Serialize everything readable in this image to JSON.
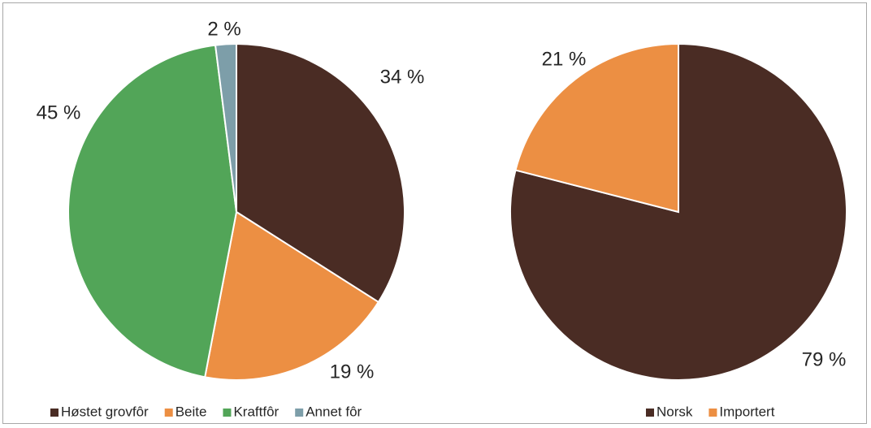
{
  "chart_data": [
    {
      "type": "pie",
      "title": "",
      "categories": [
        "Høstet grovfôr",
        "Beite",
        "Kraftfôr",
        "Annet fôr"
      ],
      "values": [
        34,
        19,
        45,
        2
      ],
      "labels": [
        "34 %",
        "19 %",
        "45 %",
        "2 %"
      ],
      "colors": [
        "#4a2c24",
        "#ec8f43",
        "#52a558",
        "#7d9ea9"
      ],
      "legend_position": "bottom-left"
    },
    {
      "type": "pie",
      "title": "",
      "categories": [
        "Norsk",
        "Importert"
      ],
      "values": [
        79,
        21
      ],
      "labels": [
        "79 %",
        "21 %"
      ],
      "colors": [
        "#4a2c24",
        "#ec8f43"
      ],
      "legend_position": "bottom-right"
    }
  ]
}
